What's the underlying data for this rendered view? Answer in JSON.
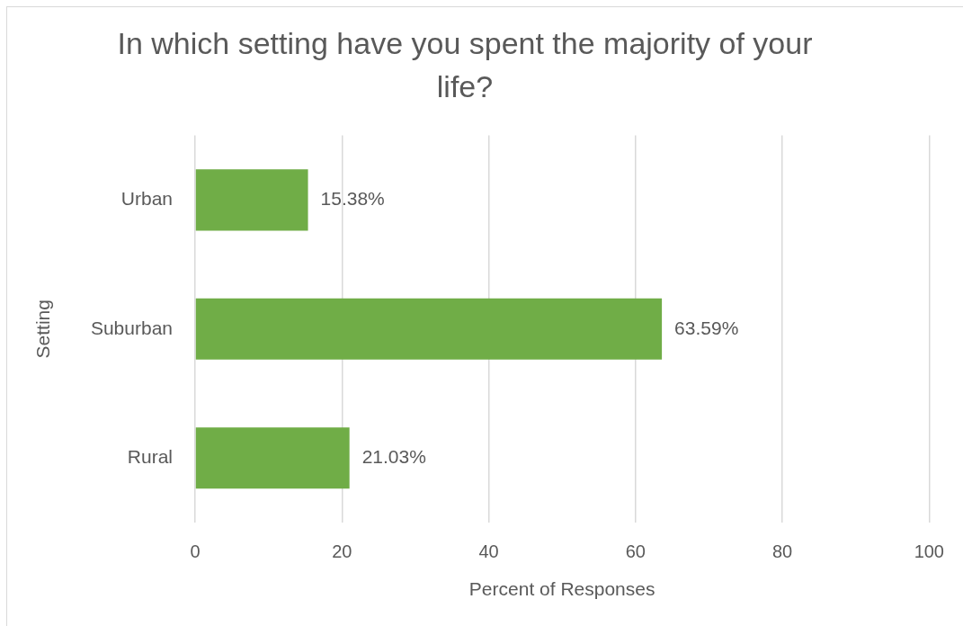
{
  "chart_data": {
    "type": "bar",
    "orientation": "horizontal",
    "title": "In which setting have you spent the majority of your life?",
    "xlabel": "Percent of Responses",
    "ylabel": "Setting",
    "categories": [
      "Urban",
      "Suburban",
      "Rural"
    ],
    "values": [
      15.38,
      63.59,
      21.03
    ],
    "color": "#70ad47",
    "value_labels": [
      "15.38%",
      "63.59%",
      "21.03%"
    ],
    "xlim": [
      0,
      100
    ],
    "xticks": [
      0,
      20,
      40,
      60,
      80,
      100
    ],
    "grid": "x"
  }
}
